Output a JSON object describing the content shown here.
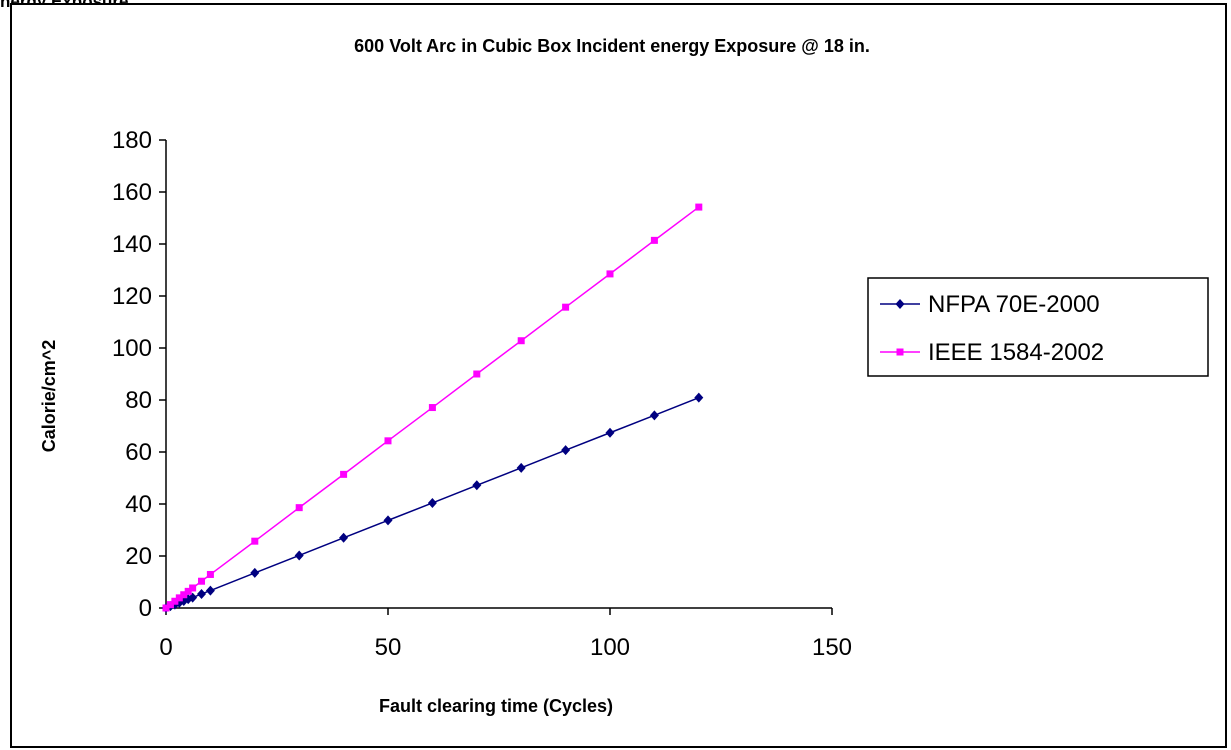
{
  "top_caption": "nergy Exposure",
  "chart_data": {
    "type": "line",
    "title": "600 Volt Arc in Cubic  Box Incident energy Exposure @ 18 in.",
    "xlabel": "Fault clearing time (Cycles)",
    "ylabel": "Calorie/cm^2",
    "xlim": [
      0,
      150
    ],
    "ylim": [
      0,
      180
    ],
    "xticks": [
      0,
      50,
      100,
      150
    ],
    "yticks": [
      0,
      20,
      40,
      60,
      80,
      100,
      120,
      140,
      160,
      180
    ],
    "grid": false,
    "legend_position": "right",
    "series": [
      {
        "name": "NFPA 70E-2000",
        "color": "#000080",
        "marker": "diamond",
        "x": [
          0,
          1,
          2,
          3,
          4,
          5,
          6,
          8,
          10,
          20,
          30,
          40,
          50,
          60,
          70,
          80,
          90,
          100,
          110,
          120
        ],
        "y": [
          0,
          0.7,
          1.3,
          2.0,
          2.7,
          3.4,
          4.0,
          5.4,
          6.7,
          13.5,
          20.2,
          27.0,
          33.7,
          40.4,
          47.2,
          53.9,
          60.7,
          67.4,
          74.1,
          80.9
        ]
      },
      {
        "name": "IEEE 1584-2002",
        "color": "#FF00FF",
        "marker": "square",
        "x": [
          0,
          1,
          2,
          3,
          4,
          5,
          6,
          8,
          10,
          20,
          30,
          40,
          50,
          60,
          70,
          80,
          90,
          100,
          110,
          120
        ],
        "y": [
          0,
          1.3,
          2.6,
          3.9,
          5.1,
          6.4,
          7.7,
          10.3,
          12.9,
          25.7,
          38.6,
          51.4,
          64.3,
          77.1,
          90.0,
          102.8,
          115.7,
          128.5,
          141.4,
          154.2
        ]
      }
    ]
  }
}
